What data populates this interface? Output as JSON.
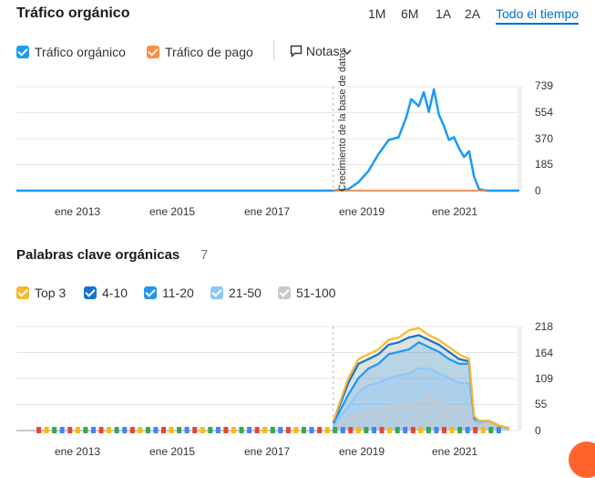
{
  "organic": {
    "title": "Tráfico orgánico",
    "ranges": [
      "1M",
      "6M",
      "1A",
      "2A",
      "Todo el tiempo"
    ],
    "active_range": "Todo el tiempo",
    "legend": {
      "organic": {
        "label": "Tráfico orgánico",
        "color": "#1a9af7"
      },
      "paid": {
        "label": "Tráfico de pago",
        "color": "#ff8c42"
      },
      "notes": "Notas"
    },
    "vertical_note": "Crecimiento de la base de datos",
    "y_ticks": [
      "739",
      "554",
      "370",
      "185",
      "0"
    ],
    "x_ticks": [
      "ene 2013",
      "ene 2015",
      "ene 2017",
      "ene 2019",
      "ene 2021"
    ]
  },
  "keywords": {
    "title": "Palabras clave orgánicas",
    "count": "7",
    "legend": [
      {
        "label": "Top 3",
        "color": "#f9b82f"
      },
      {
        "label": "4-10",
        "color": "#1473d2"
      },
      {
        "label": "11-20",
        "color": "#2196f3"
      },
      {
        "label": "21-50",
        "color": "#8ec7f7"
      },
      {
        "label": "51-100",
        "color": "#c8c9cc"
      }
    ],
    "y_ticks": [
      "218",
      "164",
      "109",
      "55",
      "0"
    ],
    "x_ticks": [
      "ene 2013",
      "ene 2015",
      "ene 2017",
      "ene 2019",
      "ene 2021"
    ]
  },
  "chart_data": [
    {
      "type": "line",
      "title": "Tráfico orgánico",
      "xlabel": "",
      "ylabel": "",
      "x_range": [
        2012.0,
        2022.0
      ],
      "ylim": [
        0,
        739
      ],
      "series": [
        {
          "name": "Tráfico orgánico",
          "color": "#1a9af7",
          "x": [
            2012.0,
            2018.3,
            2018.6,
            2018.8,
            2019.0,
            2019.2,
            2019.4,
            2019.6,
            2019.75,
            2019.85,
            2020.0,
            2020.1,
            2020.2,
            2020.3,
            2020.4,
            2020.5,
            2020.6,
            2020.7,
            2020.8,
            2020.9,
            2021.0,
            2021.1,
            2021.2,
            2021.35,
            2021.5,
            2022.0
          ],
          "y": [
            0,
            0,
            10,
            60,
            140,
            260,
            360,
            380,
            520,
            650,
            600,
            700,
            560,
            720,
            540,
            460,
            360,
            380,
            300,
            240,
            280,
            100,
            10,
            0,
            0,
            0
          ]
        },
        {
          "name": "Tráfico de pago",
          "color": "#ff8c42",
          "x": [
            2018.3,
            2021.35
          ],
          "y": [
            0,
            0
          ]
        }
      ]
    },
    {
      "type": "area",
      "title": "Palabras clave orgánicas",
      "xlabel": "",
      "ylabel": "",
      "x_range": [
        2012.0,
        2022.0
      ],
      "ylim": [
        0,
        218
      ],
      "x": [
        2018.3,
        2018.6,
        2018.8,
        2019.0,
        2019.2,
        2019.4,
        2019.6,
        2019.8,
        2020.0,
        2020.2,
        2020.4,
        2020.6,
        2020.8,
        2021.0,
        2021.1,
        2021.2,
        2021.4,
        2021.6,
        2021.8
      ],
      "series": [
        {
          "name": "51-100",
          "color": "#c8c9cc",
          "values": [
            5,
            25,
            35,
            40,
            40,
            50,
            55,
            55,
            60,
            70,
            55,
            50,
            50,
            40,
            10,
            10,
            15,
            8,
            5
          ]
        },
        {
          "name": "21-50",
          "color": "#8ec7f7",
          "values": [
            10,
            50,
            80,
            95,
            100,
            110,
            115,
            120,
            130,
            130,
            120,
            110,
            100,
            100,
            20,
            15,
            20,
            10,
            5
          ]
        },
        {
          "name": "11-20",
          "color": "#2196f3",
          "values": [
            15,
            75,
            110,
            130,
            140,
            160,
            165,
            170,
            185,
            175,
            165,
            150,
            140,
            140,
            25,
            20,
            20,
            10,
            5
          ]
        },
        {
          "name": "4-10",
          "color": "#1473d2",
          "values": [
            18,
            100,
            140,
            150,
            160,
            180,
            185,
            195,
            200,
            190,
            180,
            165,
            150,
            145,
            30,
            20,
            20,
            10,
            5
          ]
        },
        {
          "name": "Top 3",
          "color": "#f9b82f",
          "values": [
            20,
            110,
            150,
            160,
            170,
            190,
            195,
            210,
            215,
            200,
            190,
            175,
            160,
            150,
            30,
            20,
            20,
            10,
            5
          ]
        }
      ]
    }
  ]
}
